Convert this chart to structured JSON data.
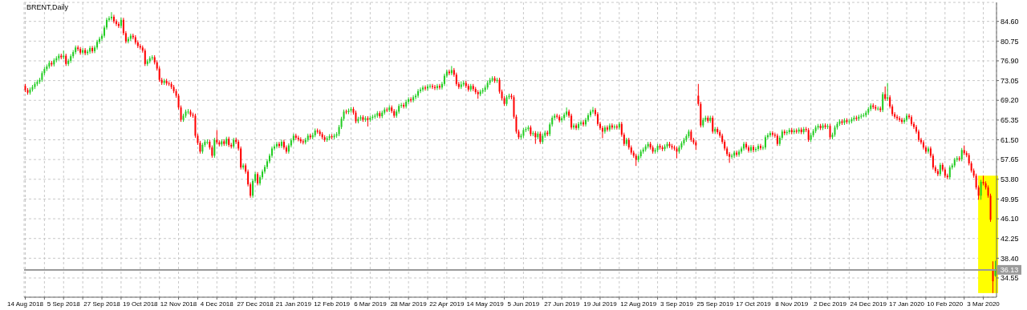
{
  "chart_data": {
    "type": "candlestick",
    "title": "BRENT,Daily",
    "categories": [
      "14 Aug 2018",
      null,
      null,
      null,
      null,
      null,
      null,
      null,
      null,
      null,
      null,
      null,
      null,
      null,
      null,
      null,
      "5 Sep 2018",
      null,
      null,
      null,
      null,
      null,
      null,
      null,
      null,
      null,
      null,
      null,
      null,
      null,
      null,
      null,
      "27 Sep 2018",
      null,
      null,
      null,
      null,
      null,
      null,
      null,
      null,
      null,
      null,
      null,
      null,
      null,
      null,
      null,
      "19 Oct 2018",
      null,
      null,
      null,
      null,
      null,
      null,
      null,
      null,
      null,
      null,
      null,
      null,
      null,
      null,
      null,
      "12 Nov 2018",
      null,
      null,
      null,
      null,
      null,
      null,
      null,
      null,
      null,
      null,
      null,
      null,
      null,
      null,
      null,
      "4 Dec 2018",
      null,
      null,
      null,
      null,
      null,
      null,
      null,
      null,
      null,
      null,
      null,
      null,
      null,
      null,
      null,
      "27 Dec 2018",
      null,
      null,
      null,
      null,
      null,
      null,
      null,
      null,
      null,
      null,
      null,
      null,
      null,
      null,
      null,
      "21 Jan 2019",
      null,
      null,
      null,
      null,
      null,
      null,
      null,
      null,
      null,
      null,
      null,
      null,
      null,
      null,
      null,
      "12 Feb 2019",
      null,
      null,
      null,
      null,
      null,
      null,
      null,
      null,
      null,
      null,
      null,
      null,
      null,
      null,
      null,
      "6 Mar 2019",
      null,
      null,
      null,
      null,
      null,
      null,
      null,
      null,
      null,
      null,
      null,
      null,
      null,
      null,
      null,
      "28 Mar 2019",
      null,
      null,
      null,
      null,
      null,
      null,
      null,
      null,
      null,
      null,
      null,
      null,
      null,
      null,
      null,
      "22 Apr 2019",
      null,
      null,
      null,
      null,
      null,
      null,
      null,
      null,
      null,
      null,
      null,
      null,
      null,
      null,
      null,
      "14 May 2019",
      null,
      null,
      null,
      null,
      null,
      null,
      null,
      null,
      null,
      null,
      null,
      null,
      null,
      null,
      null,
      "5 Jun 2019",
      null,
      null,
      null,
      null,
      null,
      null,
      null,
      null,
      null,
      null,
      null,
      null,
      null,
      null,
      null,
      "27 Jun 2019",
      null,
      null,
      null,
      null,
      null,
      null,
      null,
      null,
      null,
      null,
      null,
      null,
      null,
      null,
      null,
      "19 Jul 2019",
      null,
      null,
      null,
      null,
      null,
      null,
      null,
      null,
      null,
      null,
      null,
      null,
      null,
      null,
      null,
      "12 Aug 2019",
      null,
      null,
      null,
      null,
      null,
      null,
      null,
      null,
      null,
      null,
      null,
      null,
      null,
      null,
      null,
      "3 Sep 2019",
      null,
      null,
      null,
      null,
      null,
      null,
      null,
      null,
      null,
      null,
      null,
      null,
      null,
      null,
      null,
      "25 Sep 2019",
      null,
      null,
      null,
      null,
      null,
      null,
      null,
      null,
      null,
      null,
      null,
      null,
      null,
      null,
      null,
      "17 Oct 2019",
      null,
      null,
      null,
      null,
      null,
      null,
      null,
      null,
      null,
      null,
      null,
      null,
      null,
      null,
      null,
      "8 Nov 2019",
      null,
      null,
      null,
      null,
      null,
      null,
      null,
      null,
      null,
      null,
      null,
      null,
      null,
      null,
      null,
      "2 Dec 2019",
      null,
      null,
      null,
      null,
      null,
      null,
      null,
      null,
      null,
      null,
      null,
      null,
      null,
      null,
      null,
      "24 Dec 2019",
      null,
      null,
      null,
      null,
      null,
      null,
      null,
      null,
      null,
      null,
      null,
      null,
      null,
      null,
      null,
      "17 Jan 2020",
      null,
      null,
      null,
      null,
      null,
      null,
      null,
      null,
      null,
      null,
      null,
      null,
      null,
      null,
      null,
      "10 Feb 2020",
      null,
      null,
      null,
      null,
      null,
      null,
      null,
      null,
      null,
      null,
      null,
      null,
      null,
      null,
      null,
      "3 Mar 2020",
      null,
      null,
      null,
      null,
      null
    ],
    "ohlc": [
      [
        72.0,
        72.4,
        70.8,
        71.2
      ],
      [
        71.2,
        71.6,
        70.3,
        70.7
      ],
      [
        70.7,
        71.7,
        70.3,
        71.3
      ],
      [
        71.3,
        72.2,
        70.9,
        71.8
      ],
      [
        71.8,
        72.8,
        71.4,
        72.4
      ],
      [
        72.4,
        73.2,
        72.0,
        72.8
      ],
      [
        72.8,
        73.6,
        72.4,
        73.2
      ],
      [
        73.2,
        74.9,
        72.8,
        74.5
      ],
      [
        74.5,
        75.7,
        74.1,
        75.3
      ],
      [
        75.3,
        76.2,
        74.9,
        75.8
      ],
      [
        75.8,
        76.9,
        75.4,
        76.5
      ],
      [
        76.5,
        76.9,
        75.8,
        76.2
      ],
      [
        76.2,
        77.4,
        75.8,
        77.0
      ],
      [
        77.0,
        77.8,
        76.6,
        77.4
      ],
      [
        77.4,
        78.3,
        77.0,
        77.9
      ],
      [
        77.9,
        78.3,
        77.2,
        77.6
      ],
      [
        77.6,
        78.9,
        77.2,
        77.9
      ],
      [
        77.9,
        78.3,
        75.9,
        76.3
      ],
      [
        76.3,
        77.3,
        75.9,
        76.9
      ],
      [
        76.9,
        78.2,
        76.5,
        77.8
      ],
      [
        77.8,
        79.0,
        77.4,
        78.6
      ],
      [
        78.6,
        79.9,
        78.2,
        79.5
      ],
      [
        79.5,
        79.9,
        78.8,
        79.2
      ],
      [
        79.2,
        79.6,
        78.1,
        78.5
      ],
      [
        78.5,
        79.4,
        78.1,
        79.0
      ],
      [
        79.0,
        79.4,
        78.0,
        78.4
      ],
      [
        78.4,
        79.1,
        78.0,
        78.7
      ],
      [
        78.7,
        79.8,
        78.3,
        79.4
      ],
      [
        79.4,
        79.8,
        78.4,
        78.8
      ],
      [
        78.8,
        79.9,
        78.4,
        79.5
      ],
      [
        79.5,
        81.0,
        79.1,
        80.6
      ],
      [
        80.6,
        81.6,
        80.2,
        81.2
      ],
      [
        81.2,
        82.2,
        80.8,
        81.8
      ],
      [
        81.8,
        83.8,
        81.4,
        83.4
      ],
      [
        83.4,
        85.3,
        83.0,
        84.9
      ],
      [
        84.9,
        85.6,
        84.5,
        85.2
      ],
      [
        85.2,
        86.4,
        84.8,
        85.5
      ],
      [
        85.5,
        85.9,
        84.2,
        84.6
      ],
      [
        84.6,
        85.0,
        83.7,
        84.1
      ],
      [
        84.1,
        84.5,
        83.3,
        83.7
      ],
      [
        83.7,
        85.3,
        83.3,
        84.9
      ],
      [
        84.9,
        85.3,
        81.9,
        82.3
      ],
      [
        82.3,
        82.7,
        80.3,
        80.7
      ],
      [
        80.7,
        81.6,
        80.3,
        81.2
      ],
      [
        81.2,
        82.2,
        80.8,
        81.8
      ],
      [
        81.8,
        82.2,
        81.1,
        81.5
      ],
      [
        81.5,
        81.9,
        80.1,
        80.5
      ],
      [
        80.5,
        80.9,
        79.4,
        79.8
      ],
      [
        79.8,
        80.2,
        79.1,
        79.5
      ],
      [
        79.5,
        79.9,
        78.5,
        78.9
      ],
      [
        78.9,
        79.3,
        75.9,
        76.3
      ],
      [
        76.3,
        77.2,
        75.9,
        76.8
      ],
      [
        76.8,
        77.8,
        76.4,
        77.4
      ],
      [
        77.4,
        78.0,
        77.0,
        77.6
      ],
      [
        77.6,
        78.0,
        76.2,
        76.6
      ],
      [
        76.6,
        77.0,
        75.0,
        75.4
      ],
      [
        75.4,
        75.8,
        72.8,
        73.2
      ],
      [
        73.2,
        73.6,
        72.2,
        72.6
      ],
      [
        72.6,
        73.4,
        72.2,
        73.0
      ],
      [
        73.0,
        73.4,
        72.1,
        72.5
      ],
      [
        72.5,
        72.9,
        72.0,
        72.4
      ],
      [
        72.4,
        72.8,
        71.4,
        71.8
      ],
      [
        71.8,
        72.2,
        70.6,
        71.0
      ],
      [
        71.0,
        71.4,
        69.7,
        70.1
      ],
      [
        70.1,
        70.5,
        67.4,
        67.8
      ],
      [
        67.8,
        68.2,
        65.0,
        65.4
      ],
      [
        65.4,
        66.6,
        65.0,
        66.2
      ],
      [
        66.2,
        67.4,
        65.8,
        67.0
      ],
      [
        67.0,
        67.5,
        66.5,
        67.0
      ],
      [
        67.0,
        67.4,
        66.0,
        66.4
      ],
      [
        66.4,
        66.8,
        65.8,
        66.2
      ],
      [
        66.2,
        66.6,
        61.9,
        62.3
      ],
      [
        62.3,
        62.7,
        60.5,
        60.9
      ],
      [
        60.9,
        61.3,
        58.8,
        59.2
      ],
      [
        59.2,
        60.9,
        58.8,
        60.5
      ],
      [
        60.5,
        61.5,
        60.1,
        61.1
      ],
      [
        61.1,
        61.6,
        60.6,
        61.1
      ],
      [
        61.1,
        61.5,
        59.6,
        60.0
      ],
      [
        60.0,
        60.4,
        58.0,
        58.4
      ],
      [
        58.4,
        61.9,
        58.0,
        61.5
      ],
      [
        61.5,
        63.4,
        60.6,
        61.0
      ],
      [
        61.0,
        61.4,
        60.2,
        60.6
      ],
      [
        60.6,
        61.6,
        60.2,
        61.2
      ],
      [
        61.2,
        61.6,
        60.3,
        60.7
      ],
      [
        60.7,
        62.1,
        60.3,
        61.7
      ],
      [
        61.7,
        62.1,
        60.1,
        60.5
      ],
      [
        60.5,
        60.9,
        59.8,
        60.2
      ],
      [
        60.2,
        61.9,
        59.8,
        61.5
      ],
      [
        61.5,
        61.9,
        60.7,
        61.1
      ],
      [
        61.1,
        61.5,
        59.4,
        59.8
      ],
      [
        59.8,
        60.2,
        55.7,
        56.1
      ],
      [
        56.1,
        56.9,
        55.7,
        56.5
      ],
      [
        56.5,
        56.9,
        54.9,
        55.3
      ],
      [
        55.3,
        55.7,
        52.4,
        52.8
      ],
      [
        52.8,
        53.2,
        50.2,
        50.6
      ],
      [
        50.6,
        53.9,
        50.2,
        53.5
      ],
      [
        53.5,
        55.2,
        53.1,
        54.8
      ],
      [
        54.8,
        55.2,
        52.6,
        53.0
      ],
      [
        53.0,
        54.6,
        52.6,
        54.2
      ],
      [
        54.2,
        55.7,
        53.8,
        55.3
      ],
      [
        55.3,
        56.6,
        54.9,
        56.2
      ],
      [
        56.2,
        57.7,
        55.8,
        57.3
      ],
      [
        57.3,
        58.8,
        56.9,
        58.4
      ],
      [
        58.4,
        60.2,
        58.0,
        59.8
      ],
      [
        59.8,
        60.6,
        59.4,
        60.2
      ],
      [
        60.2,
        61.1,
        59.8,
        60.7
      ],
      [
        60.7,
        61.1,
        59.9,
        60.3
      ],
      [
        60.3,
        61.5,
        59.9,
        61.1
      ],
      [
        61.1,
        61.5,
        59.6,
        60.0
      ],
      [
        60.0,
        60.4,
        58.8,
        59.2
      ],
      [
        59.2,
        60.8,
        58.8,
        60.4
      ],
      [
        60.4,
        61.8,
        60.0,
        61.4
      ],
      [
        61.4,
        62.7,
        61.0,
        62.3
      ],
      [
        62.3,
        62.7,
        61.5,
        61.9
      ],
      [
        61.9,
        62.3,
        61.2,
        61.6
      ],
      [
        61.6,
        62.0,
        60.8,
        61.2
      ],
      [
        61.2,
        61.6,
        60.6,
        61.0
      ],
      [
        61.0,
        61.9,
        60.6,
        61.5
      ],
      [
        61.5,
        62.7,
        61.1,
        62.3
      ],
      [
        62.3,
        62.7,
        61.6,
        62.0
      ],
      [
        62.0,
        62.8,
        61.6,
        62.4
      ],
      [
        62.4,
        63.7,
        62.0,
        63.3
      ],
      [
        63.3,
        63.7,
        62.7,
        63.1
      ],
      [
        63.1,
        63.5,
        62.2,
        62.6
      ],
      [
        62.6,
        63.0,
        61.6,
        62.0
      ],
      [
        62.0,
        62.4,
        61.1,
        61.5
      ],
      [
        61.5,
        62.2,
        61.1,
        61.8
      ],
      [
        61.8,
        62.6,
        61.4,
        62.2
      ],
      [
        62.2,
        62.6,
        61.6,
        62.0
      ],
      [
        62.0,
        62.7,
        61.6,
        62.3
      ],
      [
        62.3,
        63.0,
        61.9,
        62.6
      ],
      [
        62.6,
        64.4,
        62.2,
        64.0
      ],
      [
        64.0,
        66.0,
        63.6,
        65.6
      ],
      [
        65.6,
        67.4,
        65.2,
        67.0
      ],
      [
        67.0,
        67.4,
        66.5,
        66.9
      ],
      [
        66.9,
        67.6,
        66.5,
        67.2
      ],
      [
        67.2,
        67.9,
        66.8,
        67.5
      ],
      [
        67.5,
        67.9,
        66.4,
        66.8
      ],
      [
        66.8,
        67.2,
        64.7,
        65.1
      ],
      [
        65.1,
        66.0,
        64.7,
        65.6
      ],
      [
        65.6,
        66.3,
        65.2,
        65.9
      ],
      [
        65.9,
        66.3,
        65.0,
        65.4
      ],
      [
        65.4,
        66.1,
        65.0,
        65.7
      ],
      [
        65.7,
        66.1,
        64.1,
        65.4
      ],
      [
        65.4,
        66.2,
        65.0,
        65.8
      ],
      [
        65.8,
        66.4,
        65.4,
        66.0
      ],
      [
        66.0,
        66.6,
        65.6,
        66.2
      ],
      [
        66.2,
        67.1,
        65.8,
        66.7
      ],
      [
        66.7,
        67.1,
        65.7,
        66.1
      ],
      [
        66.1,
        67.2,
        65.7,
        66.8
      ],
      [
        66.8,
        67.8,
        66.4,
        67.4
      ],
      [
        67.4,
        67.8,
        66.9,
        67.3
      ],
      [
        67.3,
        68.2,
        66.9,
        67.8
      ],
      [
        67.8,
        68.2,
        66.7,
        67.1
      ],
      [
        67.1,
        67.5,
        65.8,
        66.2
      ],
      [
        66.2,
        67.4,
        65.8,
        67.0
      ],
      [
        67.0,
        68.5,
        66.6,
        68.1
      ],
      [
        68.1,
        68.7,
        67.7,
        68.3
      ],
      [
        68.3,
        68.7,
        67.6,
        68.0
      ],
      [
        68.0,
        69.3,
        67.6,
        68.9
      ],
      [
        68.9,
        69.8,
        68.5,
        69.4
      ],
      [
        69.4,
        69.8,
        68.8,
        69.2
      ],
      [
        69.2,
        70.2,
        68.8,
        69.8
      ],
      [
        69.8,
        70.5,
        69.4,
        70.1
      ],
      [
        70.1,
        71.4,
        69.7,
        71.0
      ],
      [
        71.0,
        71.7,
        70.6,
        71.3
      ],
      [
        71.3,
        72.1,
        70.9,
        71.7
      ],
      [
        71.7,
        72.1,
        71.1,
        71.5
      ],
      [
        71.5,
        72.3,
        71.1,
        71.9
      ],
      [
        71.9,
        72.4,
        71.5,
        72.0
      ],
      [
        72.0,
        72.4,
        71.4,
        71.8
      ],
      [
        71.8,
        72.2,
        71.2,
        71.6
      ],
      [
        71.6,
        72.4,
        71.2,
        72.0
      ],
      [
        72.0,
        72.4,
        71.3,
        71.7
      ],
      [
        71.7,
        72.8,
        71.3,
        72.4
      ],
      [
        72.4,
        74.4,
        72.0,
        74.0
      ],
      [
        74.0,
        75.2,
        73.6,
        74.8
      ],
      [
        74.8,
        75.2,
        74.1,
        74.5
      ],
      [
        74.5,
        75.9,
        74.1,
        75.1
      ],
      [
        75.1,
        75.5,
        73.8,
        74.2
      ],
      [
        74.2,
        74.6,
        72.0,
        72.4
      ],
      [
        72.4,
        72.8,
        71.4,
        71.8
      ],
      [
        71.8,
        72.9,
        71.4,
        72.3
      ],
      [
        72.3,
        73.0,
        71.9,
        72.6
      ],
      [
        72.6,
        73.0,
        71.6,
        72.0
      ],
      [
        72.0,
        72.4,
        70.9,
        71.3
      ],
      [
        71.3,
        72.4,
        70.9,
        72.0
      ],
      [
        72.0,
        72.4,
        71.0,
        71.4
      ],
      [
        71.4,
        71.8,
        70.4,
        70.8
      ],
      [
        70.8,
        71.2,
        69.5,
        70.4
      ],
      [
        70.4,
        71.3,
        70.0,
        70.9
      ],
      [
        70.9,
        71.6,
        70.5,
        71.2
      ],
      [
        71.2,
        72.1,
        70.8,
        71.7
      ],
      [
        71.7,
        73.0,
        71.3,
        72.6
      ],
      [
        72.6,
        73.6,
        72.2,
        73.2
      ],
      [
        73.2,
        73.9,
        72.8,
        73.5
      ],
      [
        73.5,
        73.9,
        72.6,
        73.0
      ],
      [
        73.0,
        73.6,
        72.6,
        73.2
      ],
      [
        73.2,
        73.6,
        70.5,
        70.9
      ],
      [
        70.9,
        71.3,
        69.2,
        69.6
      ],
      [
        69.6,
        70.0,
        68.1,
        68.5
      ],
      [
        68.5,
        70.2,
        68.1,
        69.8
      ],
      [
        69.8,
        70.5,
        69.4,
        70.1
      ],
      [
        70.1,
        70.5,
        69.4,
        69.8
      ],
      [
        69.8,
        70.2,
        65.6,
        66.0
      ],
      [
        66.0,
        66.4,
        62.7,
        63.1
      ],
      [
        63.1,
        63.5,
        61.6,
        62.0
      ],
      [
        62.0,
        62.7,
        61.6,
        62.3
      ],
      [
        62.3,
        63.8,
        61.9,
        63.4
      ],
      [
        63.4,
        64.0,
        63.0,
        63.6
      ],
      [
        63.6,
        64.3,
        63.2,
        63.9
      ],
      [
        63.9,
        64.3,
        62.2,
        62.6
      ],
      [
        62.6,
        63.2,
        62.2,
        62.8
      ],
      [
        62.8,
        63.2,
        60.7,
        62.0
      ],
      [
        62.0,
        63.1,
        61.6,
        62.7
      ],
      [
        62.7,
        63.1,
        60.7,
        61.1
      ],
      [
        61.1,
        62.7,
        60.7,
        62.3
      ],
      [
        62.3,
        63.3,
        61.9,
        62.9
      ],
      [
        62.9,
        63.3,
        62.2,
        62.6
      ],
      [
        62.6,
        64.9,
        62.2,
        64.5
      ],
      [
        64.5,
        66.2,
        64.1,
        65.8
      ],
      [
        65.8,
        66.6,
        65.4,
        66.2
      ],
      [
        66.2,
        66.6,
        65.6,
        66.0
      ],
      [
        66.0,
        66.4,
        64.9,
        65.3
      ],
      [
        65.3,
        66.1,
        64.9,
        65.7
      ],
      [
        65.7,
        66.8,
        65.3,
        66.4
      ],
      [
        66.4,
        67.8,
        66.0,
        67.0
      ],
      [
        67.0,
        67.4,
        65.8,
        66.2
      ],
      [
        66.2,
        66.6,
        63.5,
        63.9
      ],
      [
        63.9,
        64.7,
        63.5,
        64.3
      ],
      [
        64.3,
        64.7,
        63.4,
        63.8
      ],
      [
        63.8,
        65.0,
        63.4,
        64.6
      ],
      [
        64.6,
        65.3,
        64.2,
        64.9
      ],
      [
        64.9,
        65.3,
        64.1,
        64.5
      ],
      [
        64.5,
        65.8,
        64.1,
        65.4
      ],
      [
        65.4,
        66.7,
        65.0,
        66.3
      ],
      [
        66.3,
        67.4,
        65.9,
        67.0
      ],
      [
        67.0,
        67.9,
        66.6,
        67.3
      ],
      [
        67.3,
        67.7,
        66.1,
        66.5
      ],
      [
        66.5,
        66.9,
        64.2,
        64.6
      ],
      [
        64.6,
        65.0,
        63.4,
        63.8
      ],
      [
        63.8,
        64.2,
        61.8,
        63.1
      ],
      [
        63.1,
        64.3,
        62.7,
        63.9
      ],
      [
        63.9,
        64.3,
        63.1,
        63.5
      ],
      [
        63.5,
        64.7,
        63.1,
        64.3
      ],
      [
        64.3,
        64.7,
        63.5,
        63.9
      ],
      [
        63.9,
        64.5,
        63.5,
        64.1
      ],
      [
        64.1,
        64.5,
        63.5,
        63.9
      ],
      [
        63.9,
        65.0,
        63.5,
        64.6
      ],
      [
        64.6,
        65.0,
        62.1,
        62.5
      ],
      [
        62.5,
        62.9,
        60.3,
        60.7
      ],
      [
        60.7,
        61.9,
        60.3,
        61.5
      ],
      [
        61.5,
        61.9,
        59.6,
        60.0
      ],
      [
        60.0,
        60.4,
        58.6,
        59.0
      ],
      [
        59.0,
        59.4,
        58.0,
        58.4
      ],
      [
        58.4,
        58.8,
        56.4,
        57.6
      ],
      [
        57.6,
        58.7,
        57.2,
        58.3
      ],
      [
        58.3,
        59.6,
        57.9,
        59.2
      ],
      [
        59.2,
        60.0,
        58.8,
        59.6
      ],
      [
        59.6,
        60.6,
        59.2,
        60.2
      ],
      [
        60.2,
        61.1,
        59.8,
        60.7
      ],
      [
        60.7,
        61.1,
        59.6,
        60.0
      ],
      [
        60.0,
        60.4,
        58.8,
        59.2
      ],
      [
        59.2,
        59.9,
        58.8,
        59.5
      ],
      [
        59.5,
        60.7,
        59.1,
        60.3
      ],
      [
        60.3,
        60.7,
        59.6,
        60.0
      ],
      [
        60.0,
        60.4,
        59.3,
        59.7
      ],
      [
        59.7,
        60.6,
        59.3,
        60.2
      ],
      [
        60.2,
        61.1,
        59.8,
        60.7
      ],
      [
        60.7,
        61.1,
        59.9,
        60.3
      ],
      [
        60.3,
        60.7,
        59.6,
        60.0
      ],
      [
        60.0,
        60.4,
        59.4,
        59.8
      ],
      [
        59.8,
        60.2,
        57.9,
        59.2
      ],
      [
        59.2,
        60.4,
        58.8,
        60.0
      ],
      [
        60.0,
        61.2,
        59.6,
        60.8
      ],
      [
        60.8,
        61.9,
        60.4,
        61.5
      ],
      [
        61.5,
        62.6,
        61.1,
        62.2
      ],
      [
        62.2,
        63.5,
        61.8,
        63.1
      ],
      [
        63.1,
        63.5,
        61.1,
        61.5
      ],
      [
        61.5,
        61.9,
        60.6,
        61.0
      ],
      [
        61.0,
        61.4,
        59.5,
        60.4
      ],
      [
        70.1,
        72.4,
        68.1,
        68.5
      ],
      [
        68.5,
        68.9,
        63.9,
        64.3
      ],
      [
        64.3,
        65.8,
        63.9,
        65.4
      ],
      [
        65.4,
        66.2,
        65.0,
        65.8
      ],
      [
        65.8,
        66.2,
        64.8,
        65.2
      ],
      [
        65.2,
        66.2,
        64.8,
        65.8
      ],
      [
        65.8,
        66.2,
        62.7,
        63.1
      ],
      [
        63.1,
        64.0,
        62.7,
        63.6
      ],
      [
        63.6,
        64.0,
        62.6,
        63.0
      ],
      [
        63.0,
        63.4,
        61.9,
        62.3
      ],
      [
        62.3,
        62.7,
        60.7,
        61.1
      ],
      [
        61.1,
        61.5,
        59.4,
        59.8
      ],
      [
        59.8,
        60.2,
        58.3,
        58.7
      ],
      [
        58.7,
        59.1,
        57.0,
        58.2
      ],
      [
        58.2,
        58.8,
        57.8,
        58.4
      ],
      [
        58.4,
        59.4,
        58.0,
        59.0
      ],
      [
        59.0,
        59.4,
        58.2,
        58.6
      ],
      [
        58.6,
        59.6,
        58.2,
        59.2
      ],
      [
        59.2,
        60.2,
        58.8,
        59.8
      ],
      [
        59.8,
        61.1,
        59.4,
        60.7
      ],
      [
        60.7,
        61.1,
        59.6,
        60.0
      ],
      [
        60.0,
        60.4,
        59.0,
        59.4
      ],
      [
        59.4,
        60.5,
        59.0,
        60.1
      ],
      [
        60.1,
        60.5,
        59.1,
        59.5
      ],
      [
        59.5,
        60.1,
        59.1,
        59.7
      ],
      [
        59.7,
        60.7,
        59.3,
        60.3
      ],
      [
        60.3,
        60.7,
        59.5,
        59.9
      ],
      [
        59.9,
        60.4,
        59.5,
        60.0
      ],
      [
        60.0,
        62.4,
        59.6,
        62.0
      ],
      [
        62.0,
        62.8,
        61.6,
        62.4
      ],
      [
        62.4,
        63.2,
        62.0,
        62.8
      ],
      [
        62.8,
        63.2,
        62.1,
        62.5
      ],
      [
        62.5,
        62.9,
        61.9,
        62.3
      ],
      [
        62.3,
        62.7,
        60.3,
        60.7
      ],
      [
        60.7,
        62.3,
        60.3,
        61.9
      ],
      [
        61.9,
        63.5,
        61.5,
        63.1
      ],
      [
        63.1,
        63.5,
        62.4,
        62.8
      ],
      [
        62.8,
        63.4,
        62.4,
        63.0
      ],
      [
        63.0,
        63.8,
        62.6,
        63.4
      ],
      [
        63.4,
        63.8,
        62.6,
        63.0
      ],
      [
        63.0,
        63.7,
        62.6,
        63.3
      ],
      [
        63.3,
        63.7,
        62.7,
        63.1
      ],
      [
        63.1,
        63.9,
        62.7,
        63.5
      ],
      [
        63.5,
        63.9,
        62.6,
        63.0
      ],
      [
        63.0,
        64.0,
        62.6,
        63.6
      ],
      [
        63.6,
        64.0,
        63.0,
        63.4
      ],
      [
        63.4,
        63.8,
        61.1,
        61.5
      ],
      [
        61.5,
        62.8,
        61.1,
        62.4
      ],
      [
        62.4,
        63.6,
        62.0,
        63.2
      ],
      [
        63.2,
        64.3,
        62.8,
        63.9
      ],
      [
        63.9,
        64.6,
        63.5,
        64.2
      ],
      [
        64.2,
        64.6,
        63.4,
        63.8
      ],
      [
        63.8,
        64.7,
        63.4,
        64.3
      ],
      [
        64.3,
        64.7,
        63.6,
        64.0
      ],
      [
        64.0,
        64.6,
        63.6,
        64.2
      ],
      [
        64.2,
        64.6,
        61.6,
        62.0
      ],
      [
        62.0,
        62.9,
        61.6,
        62.5
      ],
      [
        62.5,
        64.3,
        62.1,
        63.9
      ],
      [
        63.9,
        65.0,
        63.5,
        64.6
      ],
      [
        64.6,
        65.5,
        64.2,
        65.1
      ],
      [
        65.1,
        65.5,
        64.4,
        64.8
      ],
      [
        64.8,
        65.7,
        64.4,
        65.3
      ],
      [
        65.3,
        65.7,
        64.6,
        65.0
      ],
      [
        65.0,
        65.5,
        64.6,
        65.1
      ],
      [
        65.1,
        65.9,
        64.7,
        65.5
      ],
      [
        65.5,
        66.2,
        65.1,
        65.8
      ],
      [
        65.8,
        66.2,
        65.2,
        65.6
      ],
      [
        65.6,
        66.4,
        65.2,
        66.0
      ],
      [
        66.0,
        66.6,
        65.6,
        66.2
      ],
      [
        66.2,
        66.7,
        65.9,
        66.3
      ],
      [
        66.3,
        67.2,
        65.9,
        66.8
      ],
      [
        66.8,
        67.9,
        66.4,
        67.5
      ],
      [
        67.5,
        68.6,
        67.1,
        68.2
      ],
      [
        68.2,
        68.6,
        67.5,
        67.9
      ],
      [
        67.9,
        68.3,
        67.2,
        67.6
      ],
      [
        67.6,
        68.0,
        67.2,
        67.6
      ],
      [
        67.6,
        68.0,
        66.9,
        67.3
      ],
      [
        67.3,
        70.8,
        66.9,
        70.4
      ],
      [
        70.4,
        71.9,
        69.1,
        69.5
      ],
      [
        69.5,
        72.6,
        69.1,
        69.8
      ],
      [
        69.8,
        70.2,
        67.6,
        68.0
      ],
      [
        68.0,
        68.4,
        66.1,
        66.5
      ],
      [
        66.5,
        66.9,
        65.6,
        66.0
      ],
      [
        66.0,
        66.4,
        65.3,
        65.7
      ],
      [
        65.7,
        66.1,
        65.0,
        65.4
      ],
      [
        65.4,
        65.8,
        64.6,
        65.0
      ],
      [
        65.0,
        65.8,
        64.6,
        65.4
      ],
      [
        65.4,
        66.6,
        65.0,
        66.2
      ],
      [
        66.2,
        66.6,
        65.5,
        65.9
      ],
      [
        65.9,
        66.3,
        64.2,
        64.6
      ],
      [
        64.6,
        65.0,
        63.6,
        64.0
      ],
      [
        64.0,
        64.4,
        62.7,
        63.1
      ],
      [
        63.1,
        63.5,
        61.1,
        61.5
      ],
      [
        61.5,
        61.9,
        60.6,
        61.0
      ],
      [
        61.0,
        61.4,
        59.6,
        60.0
      ],
      [
        60.0,
        60.4,
        58.8,
        59.2
      ],
      [
        59.2,
        60.2,
        58.8,
        59.8
      ],
      [
        59.8,
        60.2,
        58.0,
        58.4
      ],
      [
        58.4,
        58.8,
        55.7,
        56.1
      ],
      [
        56.1,
        56.5,
        55.0,
        55.4
      ],
      [
        55.4,
        55.8,
        54.4,
        54.8
      ],
      [
        54.8,
        57.0,
        54.4,
        56.6
      ],
      [
        56.6,
        57.0,
        55.3,
        55.7
      ],
      [
        55.7,
        56.1,
        54.1,
        54.5
      ],
      [
        54.5,
        54.9,
        53.8,
        54.2
      ],
      [
        54.2,
        56.5,
        53.8,
        56.1
      ],
      [
        56.1,
        56.9,
        55.7,
        56.5
      ],
      [
        56.5,
        58.0,
        56.1,
        57.6
      ],
      [
        57.6,
        58.3,
        57.2,
        57.9
      ],
      [
        57.9,
        58.3,
        57.3,
        57.7
      ],
      [
        57.7,
        59.9,
        57.3,
        59.5
      ],
      [
        59.5,
        60.4,
        58.5,
        58.9
      ],
      [
        58.9,
        59.3,
        58.1,
        58.5
      ],
      [
        58.5,
        58.9,
        56.5,
        56.9
      ],
      [
        56.9,
        57.3,
        55.1,
        55.5
      ],
      [
        55.5,
        55.9,
        54.1,
        54.5
      ],
      [
        54.5,
        54.9,
        51.8,
        52.2
      ],
      [
        52.2,
        52.6,
        49.8,
        50.6
      ],
      [
        50.6,
        53.7,
        49.8,
        53.3
      ],
      [
        53.3,
        54.5,
        52.6,
        53.0
      ],
      [
        53.0,
        53.4,
        51.8,
        52.2
      ],
      [
        52.2,
        52.6,
        50.2,
        50.6
      ],
      [
        50.6,
        51.0,
        45.5,
        45.9
      ],
      [
        36.3,
        37.8,
        31.6,
        33.9
      ],
      [
        35.0,
        37.9,
        34.8,
        36.13
      ]
    ],
    "ylim": [
      30.8,
      88.3
    ],
    "yticks": [
      34.55,
      {
        "value": 38.4,
        "label": "38.40"
      },
      42.25,
      {
        "value": 46.1,
        "label": "46.10"
      },
      49.95,
      {
        "value": 53.8,
        "label": "53.80"
      },
      57.65,
      {
        "value": 61.5,
        "label": "61.50"
      },
      65.35,
      {
        "value": 69.2,
        "label": "69.20"
      },
      73.05,
      {
        "value": 76.9,
        "label": "76.90"
      },
      80.75,
      {
        "value": 84.6,
        "label": "84.60"
      }
    ],
    "grid": true,
    "ref_lines": [
      {
        "axis": "y",
        "value": 36.13,
        "label": "36.13",
        "color": "#9a9a9a"
      }
    ]
  }
}
